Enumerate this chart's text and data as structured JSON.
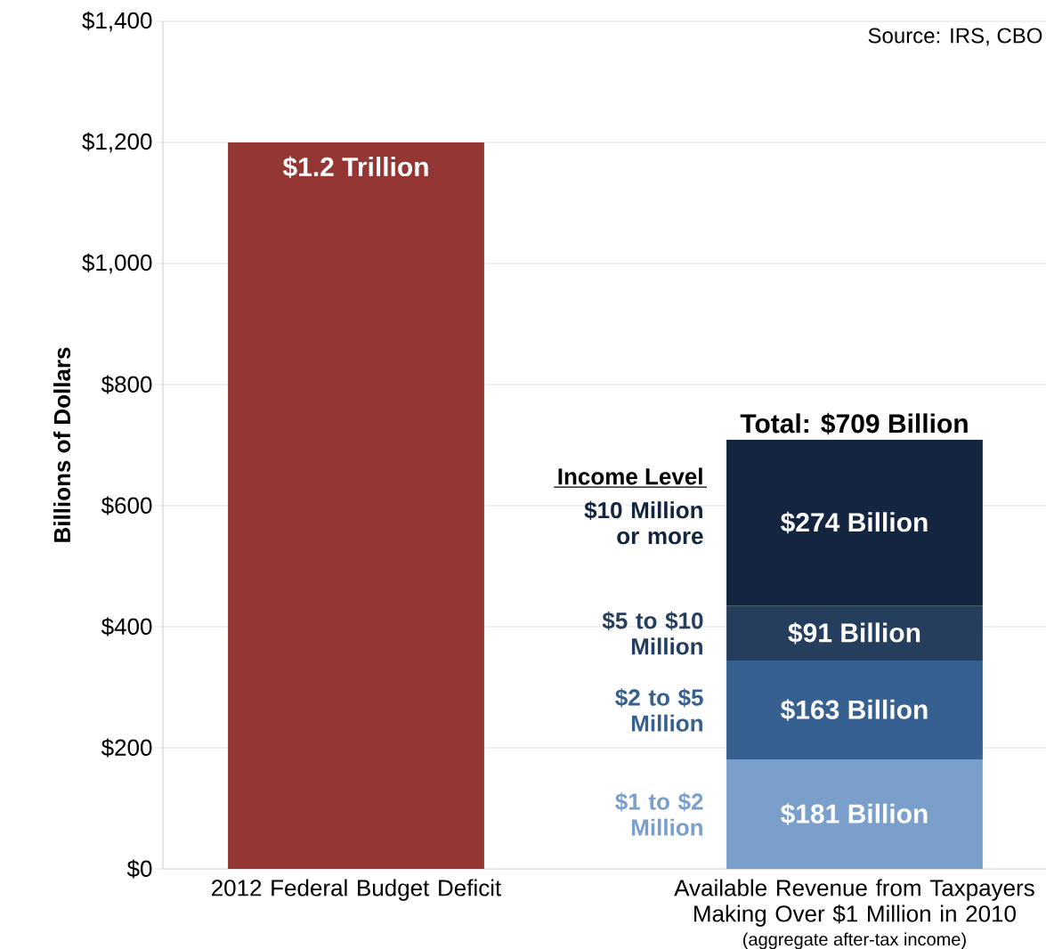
{
  "chart_data": {
    "type": "bar",
    "stacked": true,
    "ylabel": "Billions of Dollars",
    "categories": [
      "2012 Federal Budget Deficit",
      "Available Revenue from Taxpayers Making Over $1 Million in 2010"
    ],
    "series": [
      {
        "color": "#943634",
        "values": [
          1200,
          null
        ]
      },
      {
        "name": "$1 to $2 Million",
        "color": "#7b9fcb",
        "values": [
          null,
          181
        ],
        "value_labels": [
          null,
          "$181 Billion"
        ]
      },
      {
        "name": "$2 to $5 Million",
        "color": "#36608f",
        "values": [
          null,
          163
        ],
        "value_labels": [
          null,
          "$163 Billion"
        ]
      },
      {
        "name": "$5 to $10 Million",
        "color": "#253e5e",
        "values": [
          null,
          91
        ],
        "value_labels": [
          null,
          "$91 Billion"
        ]
      },
      {
        "name": "$10 Million or more",
        "color": "#13253f",
        "values": [
          null,
          274
        ],
        "value_labels": [
          null,
          "$274 Billion"
        ]
      }
    ],
    "totals": [
      null,
      "Total: $709 Billion"
    ],
    "legend_title": "Income Level",
    "ylim": [
      0,
      1400
    ],
    "yticks": [
      {
        "value": 0,
        "label": "$0"
      },
      {
        "value": 200,
        "label": "$200"
      },
      {
        "value": 400,
        "label": "$400"
      },
      {
        "value": 600,
        "label": "$600"
      },
      {
        "value": 800,
        "label": "$800"
      },
      {
        "value": 1000,
        "label": "$1,000"
      },
      {
        "value": 1200,
        "label": "$1,200"
      },
      {
        "value": 1400,
        "label": "$1,400"
      }
    ],
    "grid": "y",
    "annotations": [
      "Source: IRS, CBO",
      "(aggregate after-tax income)",
      {
        "text": "$1.2 Trillion",
        "x": "2012 Federal Budget Deficit",
        "y": 1200
      }
    ]
  }
}
